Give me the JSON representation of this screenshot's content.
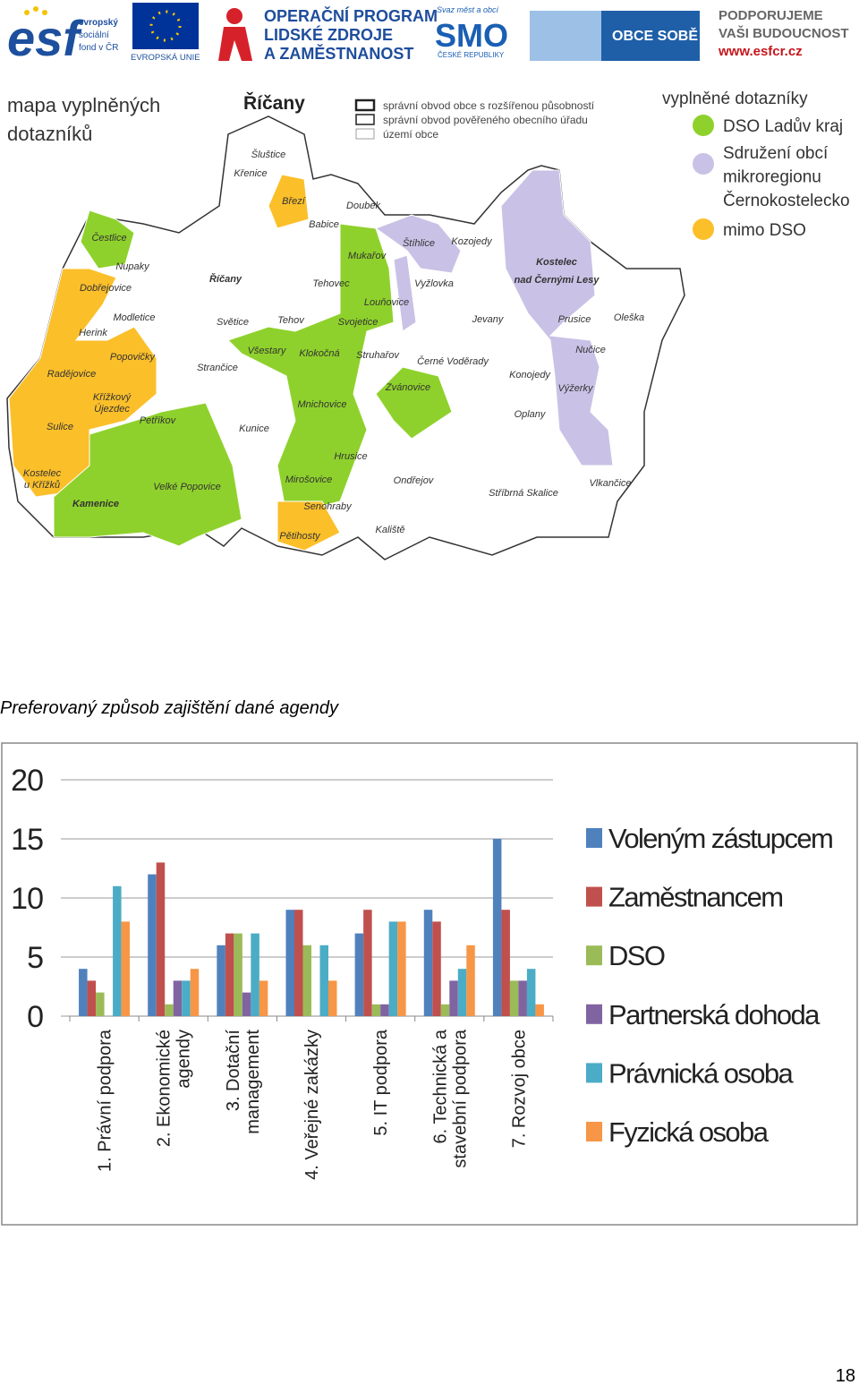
{
  "header": {
    "esf": [
      "esf",
      "evropský",
      "sociální",
      "fond v ČR"
    ],
    "eu": "EVROPSKÁ UNIE",
    "op": [
      "OPERAČNÍ PROGRAM",
      "LIDSKÉ ZDROJE",
      "A ZAMĚSTNANOST"
    ],
    "smo": [
      "Svaz měst a obcí",
      "SMO",
      "ČESKÉ REPUBLIKY"
    ],
    "obce": "OBCE SOBĚ",
    "podporujeme": [
      "PODPORUJEME",
      "VAŠI BUDOUCNOST",
      "www.esfcr.cz"
    ]
  },
  "map": {
    "title": [
      "mapa vyplněných",
      "dotazníků"
    ],
    "district": "Říčany",
    "boundary_legend": [
      "správní obvod obce s rozšířenou působností",
      "správní obvod pověřeného obecního úřadu",
      "území obce"
    ],
    "legend_title": "vyplněné dotazníky",
    "legend": [
      {
        "lines": [
          "DSO Ladův kraj"
        ],
        "color": "#8fd12c"
      },
      {
        "lines": [
          "Sdružení obcí",
          "mikroregionu",
          "Černokostelecko"
        ],
        "color": "#c9c2e6"
      },
      {
        "lines": [
          "mimo DSO"
        ],
        "color": "#fbbf2a"
      }
    ],
    "places": [
      [
        "Šluštice"
      ],
      [
        "Křenice"
      ],
      [
        "Březí"
      ],
      [
        "Doubek"
      ],
      [
        "Babice"
      ],
      [
        "Čestlice"
      ],
      [
        "Nupaky"
      ],
      [
        "Mukařov"
      ],
      [
        "Tehovec"
      ],
      [
        "Štíhlice"
      ],
      [
        "Kozojedy"
      ],
      [
        "Dobřejovice"
      ],
      [
        "Říčany"
      ],
      [
        "Vyžlovka"
      ],
      [
        "Louňovice"
      ],
      [
        "Modletice"
      ],
      [
        "Světice"
      ],
      [
        "Tehov"
      ],
      [
        "Svojetice"
      ],
      [
        "Jevany"
      ],
      [
        "Prusice"
      ],
      [
        "Oleška"
      ],
      [
        "Herink"
      ],
      [
        "Všestary"
      ],
      [
        "Klokočná"
      ],
      [
        "Struhařov"
      ],
      [
        "Nučice"
      ],
      [
        "Popovičky"
      ],
      [
        "Černé Voděrady"
      ],
      [
        "Radějovice"
      ],
      [
        "Strančice"
      ],
      [
        "Konojedy"
      ],
      [
        "Křížkový",
        "Újezdec"
      ],
      [
        "Mnichovice"
      ],
      [
        "Zvánovice"
      ],
      [
        "Výžerky"
      ],
      [
        "Petříkov"
      ],
      [
        "Kunice"
      ],
      [
        "Sulice"
      ],
      [
        "Oplany"
      ],
      [
        "Hrusice"
      ],
      [
        "Kostelec",
        "u Křížků"
      ],
      [
        "Kamenice"
      ],
      [
        "Velké Popovice"
      ],
      [
        "Mirošovice"
      ],
      [
        "Ondřejov"
      ],
      [
        "Stříbrná Skalice"
      ],
      [
        "Vlkančice"
      ],
      [
        "Senohraby"
      ],
      [
        "Kaliště"
      ],
      [
        "Pětihosty"
      ],
      [
        "Kostelec",
        "nad Černými Lesy"
      ]
    ]
  },
  "caption": "Preferovaný způsob zajištění dané agendy",
  "chart_data": {
    "type": "bar",
    "categories": [
      [
        "1.  Právní podpora"
      ],
      [
        "2.  Ekonomické",
        "agendy"
      ],
      [
        "3.  Dotační",
        "management"
      ],
      [
        "4.  Veřejné zakázky"
      ],
      [
        "5.  IT podpora"
      ],
      [
        "6.  Technická a",
        "stavební podpora"
      ],
      [
        "7.  Rozvoj obce"
      ]
    ],
    "series": [
      {
        "name": "Voleným zástupcem",
        "color": "#4f81bd",
        "values": [
          4,
          12,
          6,
          9,
          7,
          9,
          15
        ]
      },
      {
        "name": "Zaměstnancem",
        "color": "#c0504d",
        "values": [
          3,
          13,
          7,
          9,
          9,
          8,
          9
        ]
      },
      {
        "name": "DSO",
        "color": "#9bbb59",
        "values": [
          2,
          1,
          7,
          6,
          1,
          1,
          3
        ]
      },
      {
        "name": "Partnerská dohoda",
        "color": "#8064a2",
        "values": [
          0,
          3,
          2,
          0,
          1,
          3,
          3
        ]
      },
      {
        "name": "Právnická osoba",
        "color": "#4bacc6",
        "values": [
          11,
          3,
          7,
          6,
          8,
          4,
          4
        ]
      },
      {
        "name": "Fyzická osoba",
        "color": "#f79646",
        "values": [
          8,
          4,
          3,
          3,
          8,
          6,
          1
        ]
      }
    ],
    "ylim": [
      0,
      20
    ],
    "yticks": [
      0,
      5,
      10,
      15,
      20
    ],
    "grid": true,
    "legend": "right"
  },
  "page_number": "18"
}
